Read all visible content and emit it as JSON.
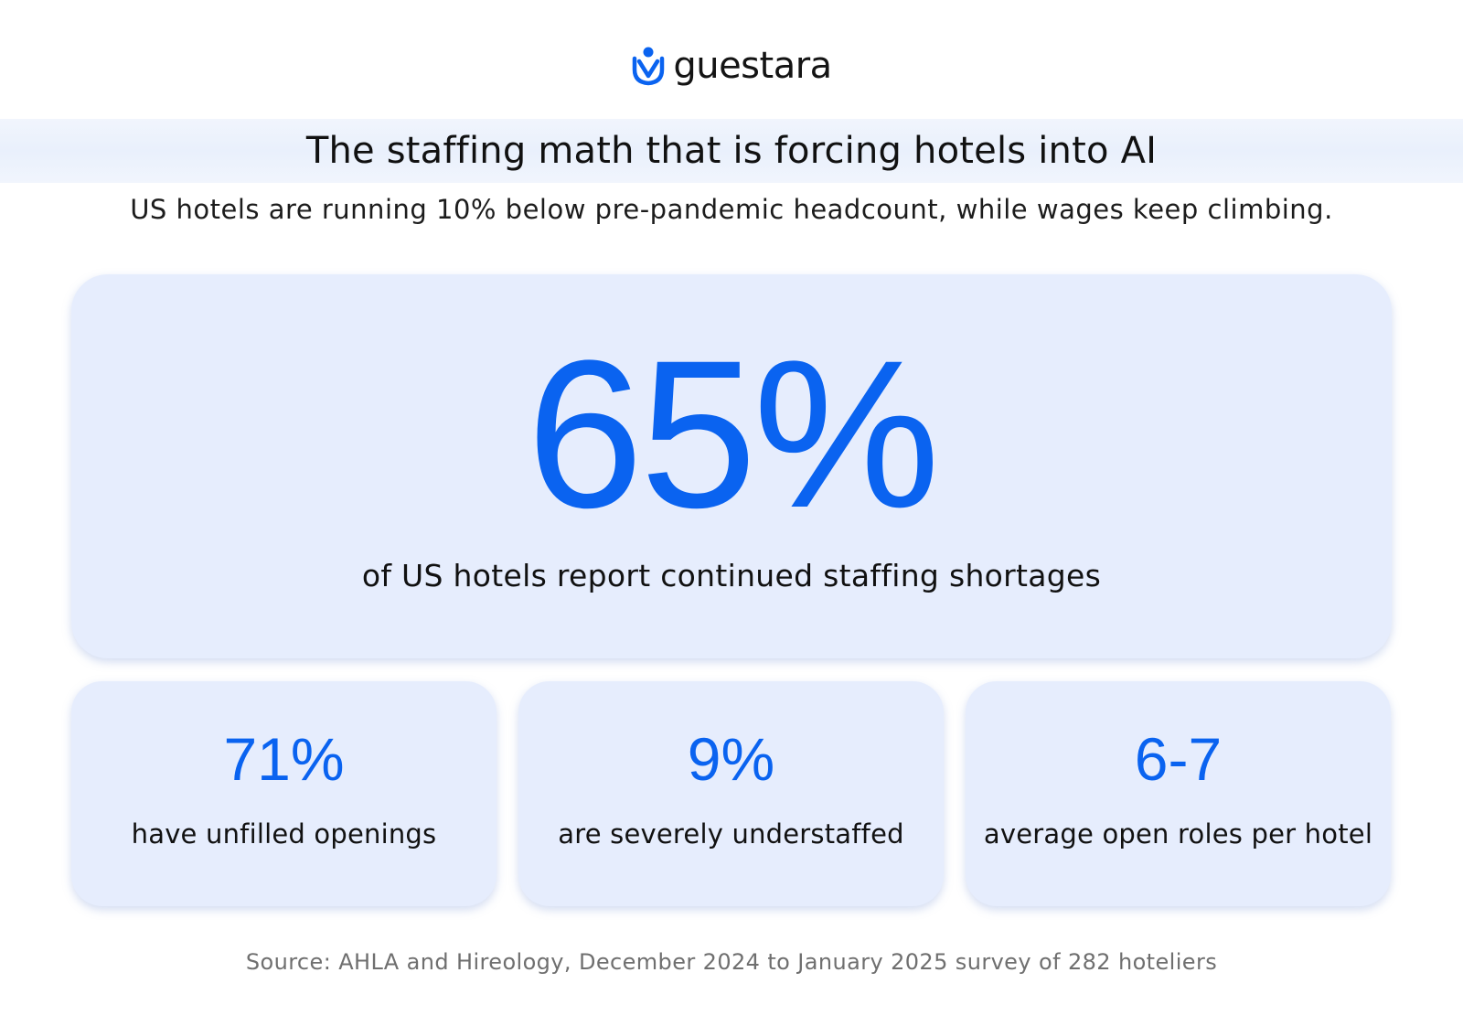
{
  "brand": {
    "name": "guestara",
    "icon": "guestara-person-logo-icon",
    "color": "#0a63f0"
  },
  "header": {
    "title": "The staffing math that is forcing hotels into AI",
    "subtitle": "US hotels are running 10% below pre-pandemic headcount, while wages keep climbing."
  },
  "hero_stat": {
    "value": "65%",
    "label": "of US hotels report continued staffing shortages"
  },
  "stats": [
    {
      "value": "71%",
      "label": "have unfilled openings"
    },
    {
      "value": "9%",
      "label": "are severely understaffed"
    },
    {
      "value": "6-7",
      "label": "average open roles per hotel"
    }
  ],
  "footer": {
    "source": "Source: AHLA and Hireology, December 2024 to January 2025 survey of 282 hoteliers"
  },
  "colors": {
    "accent": "#0a63f0",
    "card_background": "#e6edfd",
    "title_band": "#e9f0fc"
  }
}
